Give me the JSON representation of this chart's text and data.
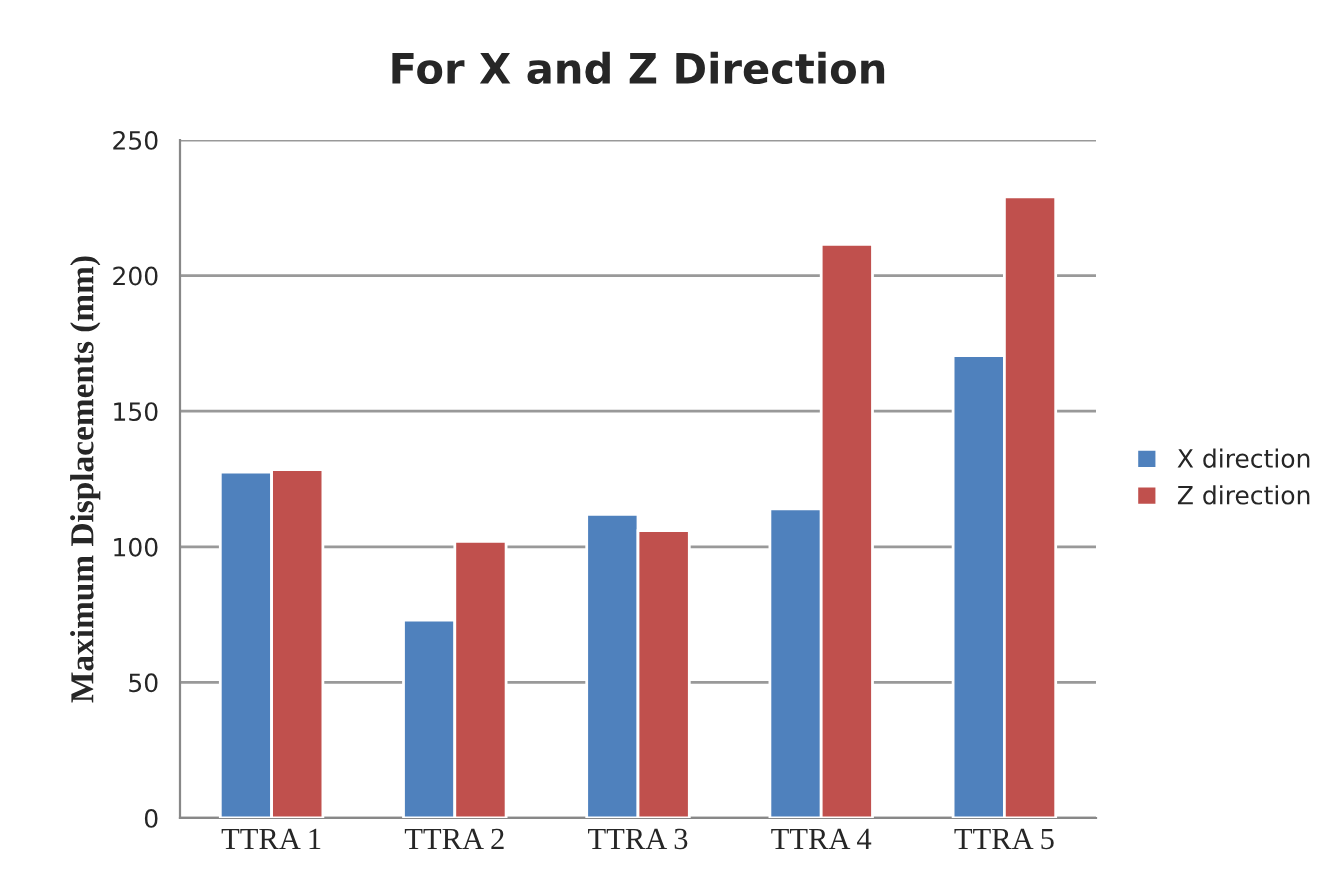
{
  "chart_data": {
    "type": "bar",
    "title": "For X and Z Direction",
    "ylabel": "Maximum Displacements (mm)",
    "categories": [
      "TTRA 1",
      "TTRA 2",
      "TTRA 3",
      "TTRA 4",
      "TTRA 5"
    ],
    "series": [
      {
        "name": "X direction",
        "color": "#4f81bd",
        "values": [
          127.5,
          73,
          112,
          114,
          170.5
        ]
      },
      {
        "name": "Z direction",
        "color": "#c0504d",
        "values": [
          128.5,
          102,
          106,
          211.5,
          229
        ]
      }
    ],
    "ylim": [
      0,
      250
    ],
    "yticks": [
      0,
      50,
      100,
      150,
      200,
      250
    ],
    "grid": "y",
    "legend": "right"
  }
}
